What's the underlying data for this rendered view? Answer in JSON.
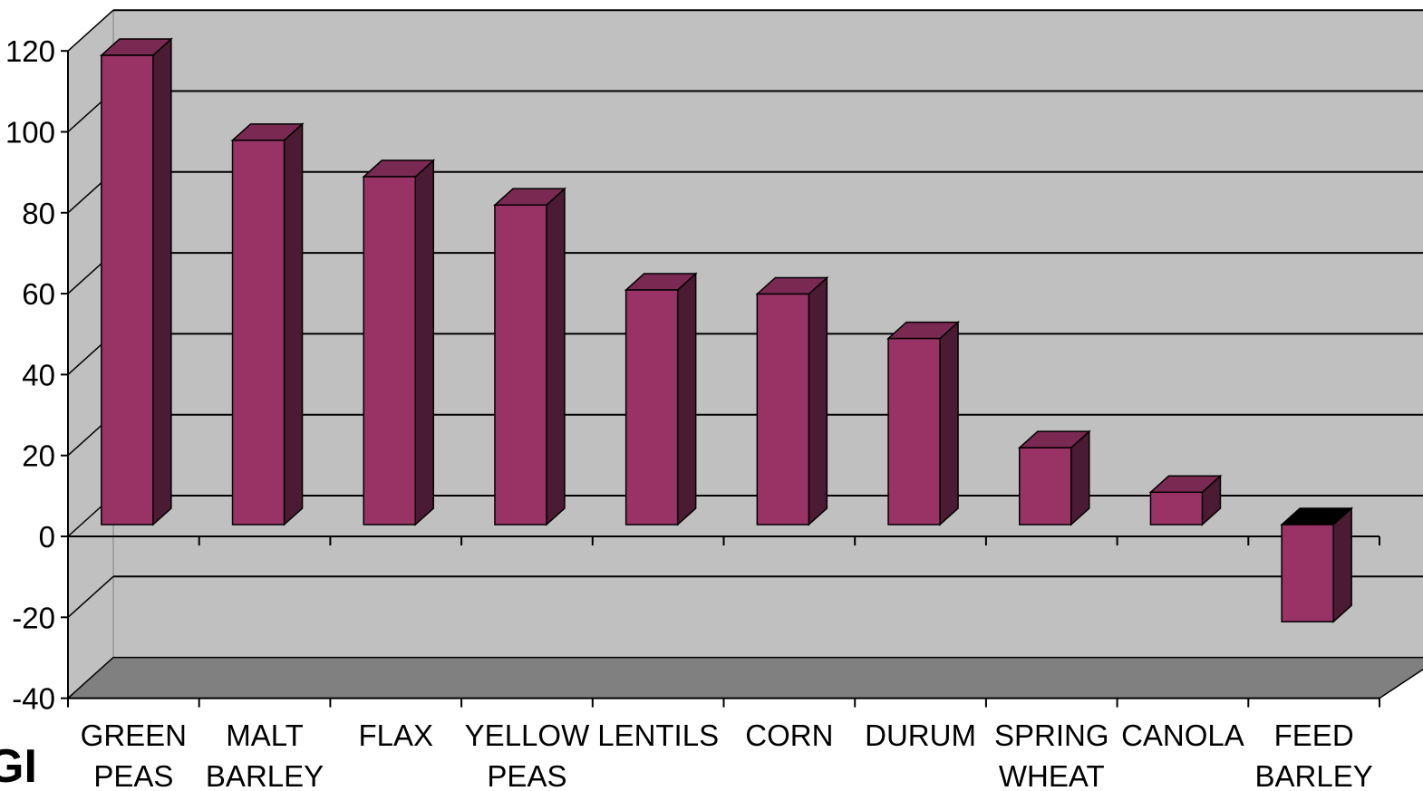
{
  "colors": {
    "wall": "#c0c0c0",
    "floor": "#808080",
    "bar_front": "#993366",
    "bar_side": "#4b1a33",
    "bar_top": "#7a2952",
    "gridline": "#000000",
    "negative_top": "#000000"
  },
  "logo": {
    "icon": "company-logo-icon",
    "text": "GI"
  },
  "chart_data": {
    "type": "bar",
    "style": "3d-column",
    "title": "",
    "xlabel": "",
    "ylabel": "",
    "ylim": [
      -40,
      120
    ],
    "yticks": [
      -40,
      -20,
      0,
      20,
      40,
      60,
      80,
      100,
      120
    ],
    "grid": true,
    "legend": "none",
    "categories": [
      [
        "GREEN",
        "PEAS"
      ],
      [
        "MALT",
        "BARLEY"
      ],
      [
        "FLAX"
      ],
      [
        "YELLOW",
        "PEAS"
      ],
      [
        "LENTILS"
      ],
      [
        "CORN"
      ],
      [
        "DURUM"
      ],
      [
        "SPRING",
        "WHEAT"
      ],
      [
        "CANOLA"
      ],
      [
        "FEED",
        "BARLEY"
      ]
    ],
    "values": [
      116,
      95,
      86,
      79,
      58,
      57,
      46,
      19,
      8,
      -24
    ]
  }
}
